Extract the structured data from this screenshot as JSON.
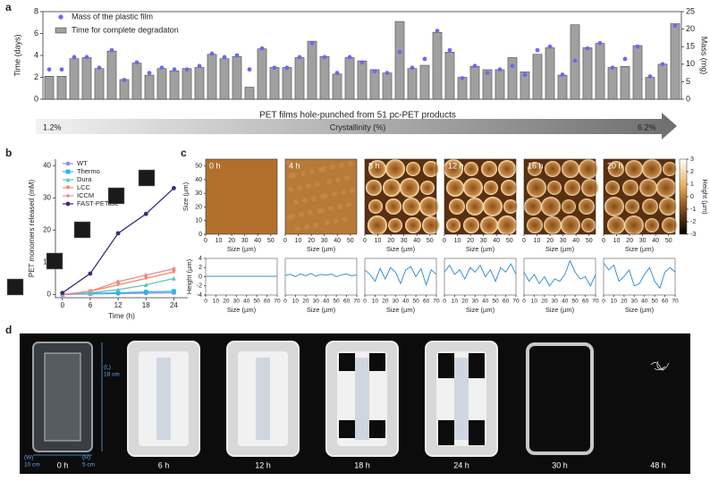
{
  "panels": [
    "a",
    "b",
    "c",
    "d"
  ],
  "chart_data": [
    {
      "type": "bar",
      "ylabel": "Time (days)",
      "y2label": "Mass (mg)",
      "xlabel": "PET films hole-punched from 51 pc-PET products",
      "annotations": {
        "start": "1.2%",
        "label": "Crystallinity (%)",
        "end": "6.2%"
      },
      "ylim": [
        0,
        8
      ],
      "yticks": [
        0,
        2,
        4,
        6,
        8
      ],
      "y2lim": [
        0,
        25
      ],
      "y2ticks": [
        0,
        5,
        10,
        15,
        20,
        25
      ],
      "series": [
        {
          "name": "Mass of the plastic film",
          "color": "#6a6af0",
          "axis": "y2",
          "values": [
            8.5,
            8.5,
            12,
            12,
            9,
            14,
            5.5,
            10.5,
            7.5,
            9,
            8.5,
            8.5,
            9.5,
            13,
            12,
            12.5,
            8.5,
            14.5,
            9,
            9,
            12,
            16,
            12,
            7.5,
            12,
            10.5,
            8,
            7.5,
            13.5,
            9,
            11.5,
            19.5,
            14,
            6,
            9.5,
            7.5,
            8.5,
            9.5,
            7,
            14,
            15,
            7,
            11,
            14.5,
            16,
            9,
            11.5,
            15,
            6.5,
            10,
            21
          ]
        },
        {
          "name": "Time for complete degradaton",
          "color": "#a0a0a0",
          "values": [
            2.1,
            2.1,
            3.7,
            3.8,
            2.8,
            4.4,
            1.8,
            3.3,
            2.2,
            2.8,
            2.6,
            2.8,
            2.9,
            4.1,
            3.7,
            3.9,
            1.1,
            4.6,
            2.9,
            2.9,
            3.8,
            5.3,
            3.9,
            2.3,
            3.8,
            3.5,
            2.7,
            2.4,
            7.1,
            2.8,
            3.1,
            6.1,
            4.3,
            2.0,
            3.0,
            2.7,
            2.7,
            3.8,
            2.5,
            4.1,
            4.7,
            2.2,
            6.8,
            4.7,
            5.1,
            2.9,
            3.0,
            4.9,
            2.0,
            3.2,
            6.9
          ]
        }
      ]
    },
    {
      "type": "line",
      "xlabel": "Time (h)",
      "ylabel": "PET monomers released (mM)",
      "x": [
        0,
        6,
        12,
        18,
        24
      ],
      "xlim": [
        -1.5,
        27
      ],
      "xticks": [
        0,
        6,
        12,
        18,
        24
      ],
      "ylim": [
        -1,
        42
      ],
      "yticks": [
        0,
        10,
        20,
        30,
        40
      ],
      "series": [
        {
          "name": "WT",
          "color": "#9d8fd6",
          "marker": "circle",
          "values": [
            0,
            0.2,
            0.3,
            0.4,
            0.5
          ]
        },
        {
          "name": "Thermo",
          "color": "#29b6ea",
          "marker": "square",
          "values": [
            0,
            0.3,
            0.5,
            0.8,
            1
          ]
        },
        {
          "name": "Dura",
          "color": "#5cc6b8",
          "marker": "triangle",
          "values": [
            0,
            0.5,
            1.5,
            3,
            5
          ]
        },
        {
          "name": "LCC",
          "color": "#f28a5a",
          "marker": "triangle-down",
          "values": [
            0,
            1,
            3,
            5,
            7
          ]
        },
        {
          "name": "ICCM",
          "color": "#f0879a",
          "marker": "diamond",
          "values": [
            0,
            1,
            4,
            6,
            8
          ]
        },
        {
          "name": "FAST-PETase",
          "color": "#3b2a7a",
          "marker": "circle",
          "values": [
            0.5,
            6.5,
            19,
            25,
            33
          ]
        }
      ]
    },
    {
      "type": "afm-image",
      "titles": [
        "0 h",
        "4 h",
        "8 h",
        "12 h",
        "16 h",
        "20 h"
      ],
      "xlabel": "Size (µm)",
      "ylabel": "Size (µm)",
      "xlim": [
        0,
        55
      ],
      "xticks": [
        0,
        10,
        20,
        30,
        40,
        50
      ],
      "ylim": [
        0,
        55
      ],
      "yticks": [
        0,
        10,
        20,
        30,
        40,
        50
      ],
      "colorbar": {
        "label": "Height (µm)",
        "lim": [
          -3,
          3
        ],
        "ticks": [
          3,
          2,
          1,
          0,
          -1,
          -2,
          -3
        ]
      }
    },
    {
      "type": "profile",
      "xlabel": "Size (µm)",
      "ylabel": "Height (µm)",
      "x": [
        0,
        5,
        10,
        15,
        20,
        25,
        30,
        35,
        40,
        45,
        50,
        55,
        60,
        65,
        70
      ],
      "xlim": [
        0,
        70
      ],
      "xticks": [
        0,
        10,
        20,
        30,
        40,
        50,
        60,
        70
      ],
      "ylim": [
        -4,
        4
      ],
      "yticks": [
        4,
        2,
        0,
        -2,
        -4
      ],
      "series": [
        {
          "color": "#3a8fd0",
          "values": [
            0.1,
            0.1,
            0.1,
            0.1,
            0.1,
            0.1,
            0.1,
            0.1,
            0.1,
            0.1,
            0.1,
            0.1,
            0.1,
            0.1,
            0.1
          ]
        },
        {
          "color": "#3a8fd0",
          "values": [
            0.3,
            0.5,
            0.0,
            0.6,
            0.2,
            0.7,
            0.1,
            0.5,
            0.3,
            0.6,
            0.0,
            0.4,
            0.6,
            0.2,
            0.4
          ]
        },
        {
          "color": "#3a8fd0",
          "values": [
            1.5,
            0.5,
            -1.0,
            1.8,
            -0.5,
            2.0,
            1.0,
            -1.5,
            1.5,
            2.2,
            0.0,
            1.8,
            -1.8,
            1.5,
            0.5
          ]
        },
        {
          "color": "#3a8fd0",
          "values": [
            1.0,
            2.5,
            0.5,
            1.5,
            -0.5,
            2.0,
            1.0,
            2.5,
            0.0,
            1.5,
            -1.0,
            2.0,
            1.0,
            2.8,
            0.5
          ]
        },
        {
          "color": "#3a8fd0",
          "values": [
            1.0,
            -1.0,
            0.5,
            -1.5,
            0.0,
            -2.0,
            -0.5,
            -1.0,
            0.5,
            3.5,
            1.0,
            -0.5,
            0.0,
            -2.0,
            0.5
          ]
        },
        {
          "color": "#3a8fd0",
          "values": [
            3.0,
            1.5,
            2.5,
            -1.0,
            0.0,
            1.5,
            -2.0,
            -1.5,
            0.5,
            2.0,
            -1.0,
            -2.5,
            1.0,
            2.0,
            1.0
          ]
        }
      ]
    }
  ],
  "photos": {
    "labels": [
      "0 h",
      "6 h",
      "12 h",
      "18 h",
      "24 h",
      "30 h",
      "48 h"
    ],
    "dimensions": [
      {
        "axis": "(L)",
        "size": "18 cm"
      },
      {
        "axis": "(W)",
        "size": "10 cm"
      },
      {
        "axis": "(H)",
        "size": "5 cm"
      }
    ]
  }
}
